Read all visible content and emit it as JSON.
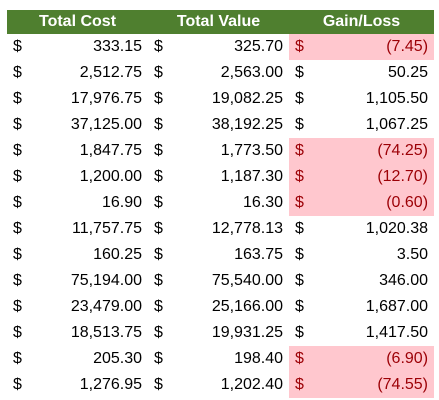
{
  "headers": [
    "Total Cost",
    "Total Value",
    "Gain/Loss"
  ],
  "currency_symbol": "$",
  "colors": {
    "header_bg": "#4f7f2f",
    "header_text": "#ffffff",
    "loss_bg": "#ffc7ce",
    "loss_text": "#9c0006"
  },
  "rows": [
    {
      "cost": "333.15",
      "value": "325.70",
      "gain": "(7.45)",
      "loss": true
    },
    {
      "cost": "2,512.75",
      "value": "2,563.00",
      "gain": "50.25",
      "loss": false
    },
    {
      "cost": "17,976.75",
      "value": "19,082.25",
      "gain": "1,105.50",
      "loss": false
    },
    {
      "cost": "37,125.00",
      "value": "38,192.25",
      "gain": "1,067.25",
      "loss": false
    },
    {
      "cost": "1,847.75",
      "value": "1,773.50",
      "gain": "(74.25)",
      "loss": true
    },
    {
      "cost": "1,200.00",
      "value": "1,187.30",
      "gain": "(12.70)",
      "loss": true
    },
    {
      "cost": "16.90",
      "value": "16.30",
      "gain": "(0.60)",
      "loss": true
    },
    {
      "cost": "11,757.75",
      "value": "12,778.13",
      "gain": "1,020.38",
      "loss": false
    },
    {
      "cost": "160.25",
      "value": "163.75",
      "gain": "3.50",
      "loss": false
    },
    {
      "cost": "75,194.00",
      "value": "75,540.00",
      "gain": "346.00",
      "loss": false
    },
    {
      "cost": "23,479.00",
      "value": "25,166.00",
      "gain": "1,687.00",
      "loss": false
    },
    {
      "cost": "18,513.75",
      "value": "19,931.25",
      "gain": "1,417.50",
      "loss": false
    },
    {
      "cost": "205.30",
      "value": "198.40",
      "gain": "(6.90)",
      "loss": true
    },
    {
      "cost": "1,276.95",
      "value": "1,202.40",
      "gain": "(74.55)",
      "loss": true
    }
  ]
}
